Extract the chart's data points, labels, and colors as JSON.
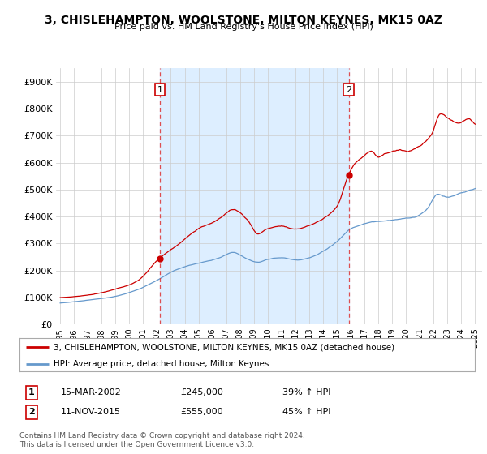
{
  "title": "3, CHISLEHAMPTON, WOOLSTONE, MILTON KEYNES, MK15 0AZ",
  "subtitle": "Price paid vs. HM Land Registry's House Price Index (HPI)",
  "ylim": [
    0,
    950000
  ],
  "yticks": [
    0,
    100000,
    200000,
    300000,
    400000,
    500000,
    600000,
    700000,
    800000,
    900000
  ],
  "ytick_labels": [
    "£0",
    "£100K",
    "£200K",
    "£300K",
    "£400K",
    "£500K",
    "£600K",
    "£700K",
    "£800K",
    "£900K"
  ],
  "xlim_start": 1994.7,
  "xlim_end": 2025.5,
  "xtick_years": [
    1995,
    1996,
    1997,
    1998,
    1999,
    2000,
    2001,
    2002,
    2003,
    2004,
    2005,
    2006,
    2007,
    2008,
    2009,
    2010,
    2011,
    2012,
    2013,
    2014,
    2015,
    2016,
    2017,
    2018,
    2019,
    2020,
    2021,
    2022,
    2023,
    2024,
    2025
  ],
  "sale1_x": 2002.204,
  "sale1_y": 245000,
  "sale2_x": 2015.868,
  "sale2_y": 555000,
  "vline1_x": 2002.204,
  "vline2_x": 2015.868,
  "vline_color": "#dd3333",
  "sale_color": "#cc0000",
  "hpi_color": "#6699cc",
  "shade_color": "#ddeeff",
  "legend_sale_label": "3, CHISLEHAMPTON, WOOLSTONE, MILTON KEYNES, MK15 0AZ (detached house)",
  "legend_hpi_label": "HPI: Average price, detached house, Milton Keynes",
  "annotation1_label": "1",
  "annotation2_label": "2",
  "annot_box_color": "#ffffff",
  "annot_box_edge": "#cc0000",
  "table_row1": [
    "1",
    "15-MAR-2002",
    "£245,000",
    "39% ↑ HPI"
  ],
  "table_row2": [
    "2",
    "11-NOV-2015",
    "£555,000",
    "45% ↑ HPI"
  ],
  "footer": "Contains HM Land Registry data © Crown copyright and database right 2024.\nThis data is licensed under the Open Government Licence v3.0.",
  "bg_color": "#ffffff",
  "plot_bg_color": "#ffffff",
  "grid_color": "#cccccc"
}
